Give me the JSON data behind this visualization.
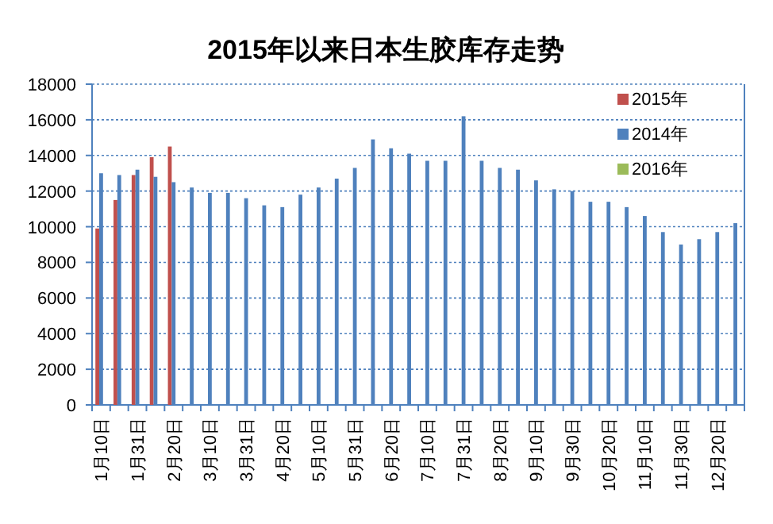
{
  "chart_data": {
    "type": "bar",
    "title": "2015年以来日本生胶库存走势",
    "categories": [
      "1月10日",
      null,
      "1月31日",
      null,
      "2月20日",
      null,
      "3月10日",
      null,
      "3月31日",
      null,
      "4月20日",
      null,
      "5月10日",
      null,
      "5月31日",
      null,
      "6月20日",
      null,
      "7月10日",
      null,
      "7月31日",
      null,
      "8月20日",
      null,
      "9月10日",
      null,
      "9月30日",
      null,
      "10月20日",
      null,
      "11月10日",
      null,
      "11月30日",
      null,
      "12月20日",
      null
    ],
    "series": [
      {
        "name": "2015年",
        "color": "#c0504d",
        "values": [
          9900,
          11500,
          12900,
          13900,
          14500,
          null,
          null,
          null,
          null,
          null,
          null,
          null,
          null,
          null,
          null,
          null,
          null,
          null,
          null,
          null,
          null,
          null,
          null,
          null,
          null,
          null,
          null,
          null,
          null,
          null,
          null,
          null,
          null,
          null,
          null,
          null
        ]
      },
      {
        "name": "2014年",
        "color": "#4f81bd",
        "values": [
          13000,
          12900,
          13200,
          12800,
          12500,
          12200,
          11900,
          11900,
          11600,
          11200,
          11100,
          11800,
          12200,
          12700,
          13300,
          14900,
          14400,
          14100,
          13700,
          13700,
          16200,
          13700,
          13300,
          13200,
          12600,
          12100,
          12000,
          11400,
          11400,
          11100,
          10600,
          9700,
          9000,
          9300,
          9700,
          10200
        ]
      },
      {
        "name": "2016年",
        "color": "#9bbb59",
        "values": [
          null,
          null,
          null,
          null,
          null,
          null,
          null,
          null,
          null,
          null,
          null,
          null,
          null,
          null,
          null,
          null,
          null,
          null,
          null,
          null,
          null,
          null,
          null,
          null,
          null,
          null,
          null,
          null,
          null,
          null,
          null,
          null,
          null,
          null,
          null,
          null
        ]
      }
    ],
    "ylim": [
      0,
      18000
    ],
    "yticks": [
      0,
      2000,
      4000,
      6000,
      8000,
      10000,
      12000,
      14000,
      16000,
      18000
    ],
    "grid": "y",
    "legend": "top right"
  }
}
